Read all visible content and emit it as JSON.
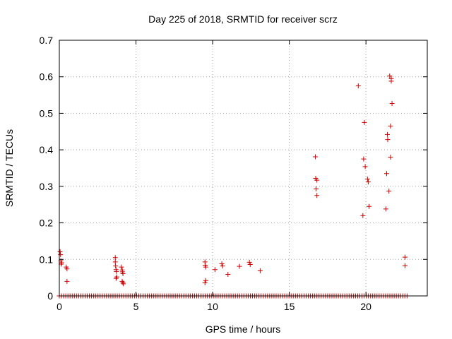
{
  "chart_data": {
    "type": "scatter",
    "title": "Day 225 of 2018, SRMTID for receiver scrz",
    "xlabel": "GPS time / hours",
    "ylabel": "SRMTID / TECUs",
    "xlim": [
      0,
      24
    ],
    "ylim": [
      0,
      0.7
    ],
    "xticks": [
      0,
      5,
      10,
      15,
      20
    ],
    "xtick_labels": [
      "0",
      "5",
      "10",
      "15",
      "20"
    ],
    "yticks": [
      0,
      0.1,
      0.2,
      0.3,
      0.4,
      0.5,
      0.6,
      0.7
    ],
    "ytick_labels": [
      "0",
      "0.1",
      "0.2",
      "0.3",
      "0.4",
      "0.5",
      "0.6",
      "0.7"
    ],
    "grid": true,
    "legend": "none",
    "marker": "plus",
    "colors": {
      "series": "#cc0000",
      "grid": "#a0a0a0",
      "axis": "#000000"
    },
    "baseline_zero": {
      "x_start": 0.0,
      "x_end": 22.8,
      "step": 0.14,
      "y": 0
    },
    "series": [
      {
        "name": "SRMTID",
        "points": [
          [
            0.05,
            0.121
          ],
          [
            0.08,
            0.113
          ],
          [
            0.1,
            0.096
          ],
          [
            0.12,
            0.087
          ],
          [
            0.15,
            0.091
          ],
          [
            0.45,
            0.079
          ],
          [
            0.5,
            0.074
          ],
          [
            0.5,
            0.04
          ],
          [
            3.65,
            0.105
          ],
          [
            3.65,
            0.093
          ],
          [
            3.67,
            0.082
          ],
          [
            3.7,
            0.072
          ],
          [
            3.72,
            0.067
          ],
          [
            3.75,
            0.052
          ],
          [
            3.7,
            0.048
          ],
          [
            4.05,
            0.079
          ],
          [
            4.1,
            0.071
          ],
          [
            4.12,
            0.066
          ],
          [
            4.15,
            0.061
          ],
          [
            4.1,
            0.04
          ],
          [
            4.15,
            0.036
          ],
          [
            4.18,
            0.033
          ],
          [
            9.5,
            0.093
          ],
          [
            9.52,
            0.084
          ],
          [
            9.55,
            0.079
          ],
          [
            9.55,
            0.042
          ],
          [
            9.5,
            0.036
          ],
          [
            10.15,
            0.072
          ],
          [
            10.6,
            0.088
          ],
          [
            10.65,
            0.082
          ],
          [
            11.0,
            0.059
          ],
          [
            11.75,
            0.081
          ],
          [
            12.4,
            0.092
          ],
          [
            12.45,
            0.086
          ],
          [
            13.1,
            0.069
          ],
          [
            16.7,
            0.381
          ],
          [
            16.72,
            0.322
          ],
          [
            16.8,
            0.317
          ],
          [
            16.75,
            0.293
          ],
          [
            16.8,
            0.275
          ],
          [
            19.5,
            0.575
          ],
          [
            19.8,
            0.22
          ],
          [
            19.85,
            0.375
          ],
          [
            19.9,
            0.475
          ],
          [
            19.95,
            0.354
          ],
          [
            20.1,
            0.32
          ],
          [
            20.15,
            0.312
          ],
          [
            20.2,
            0.245
          ],
          [
            21.3,
            0.238
          ],
          [
            21.35,
            0.335
          ],
          [
            21.4,
            0.442
          ],
          [
            21.42,
            0.428
          ],
          [
            21.5,
            0.287
          ],
          [
            21.55,
            0.602
          ],
          [
            21.6,
            0.465
          ],
          [
            21.6,
            0.38
          ],
          [
            21.65,
            0.595
          ],
          [
            21.65,
            0.588
          ],
          [
            21.7,
            0.527
          ],
          [
            22.55,
            0.106
          ],
          [
            22.55,
            0.083
          ]
        ]
      }
    ]
  }
}
